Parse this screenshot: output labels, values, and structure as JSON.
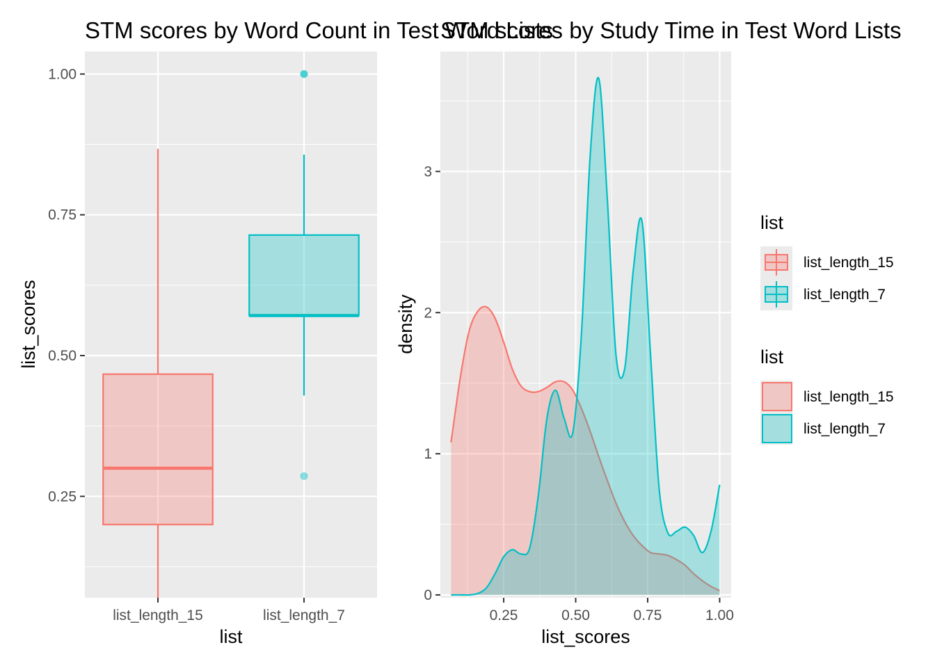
{
  "chart_data": [
    {
      "type": "boxplot",
      "title": "STM scores by Word Count in Test Word Lists",
      "xlabel": "list",
      "ylabel": "list_scores",
      "ylim": [
        0.07,
        1.04
      ],
      "y_ticks": [
        {
          "value": 0.25,
          "label": "0.25"
        },
        {
          "value": 0.5,
          "label": "0.50"
        },
        {
          "value": 0.75,
          "label": "0.75"
        },
        {
          "value": 1.0,
          "label": "1.00"
        }
      ],
      "categories": [
        "list_length_15",
        "list_length_7"
      ],
      "boxes": [
        {
          "category": "list_length_15",
          "whisker_low": 0.067,
          "q1": 0.2,
          "median": 0.3,
          "q3": 0.467,
          "whisker_high": 0.867,
          "outliers": [],
          "color": "#F8766D"
        },
        {
          "category": "list_length_7",
          "whisker_low": 0.429,
          "q1": 0.571,
          "median": 0.571,
          "q3": 0.714,
          "whisker_high": 0.857,
          "outliers": [
            1.0,
            0.286
          ],
          "color": "#00BFC4"
        }
      ],
      "grid": true
    },
    {
      "type": "area",
      "title": "STM scores by Study Time in Test Word Lists",
      "xlabel": "list_scores",
      "ylabel": "density",
      "xlim": [
        0.03,
        1.04
      ],
      "ylim": [
        -0.02,
        3.85
      ],
      "x_ticks": [
        {
          "value": 0.25,
          "label": "0.25"
        },
        {
          "value": 0.5,
          "label": "0.50"
        },
        {
          "value": 0.75,
          "label": "0.75"
        },
        {
          "value": 1.0,
          "label": "1.00"
        }
      ],
      "y_ticks": [
        {
          "value": 0,
          "label": "0"
        },
        {
          "value": 1,
          "label": "1"
        },
        {
          "value": 2,
          "label": "2"
        },
        {
          "value": 3,
          "label": "3"
        }
      ],
      "grid": true,
      "series": [
        {
          "name": "list_length_15",
          "color": "#F8766D",
          "x": [
            0.067,
            0.1,
            0.13,
            0.16,
            0.19,
            0.22,
            0.25,
            0.28,
            0.31,
            0.34,
            0.37,
            0.4,
            0.43,
            0.46,
            0.49,
            0.52,
            0.55,
            0.58,
            0.61,
            0.64,
            0.67,
            0.7,
            0.73,
            0.76,
            0.79,
            0.82,
            0.85,
            0.88,
            0.91,
            0.94,
            0.97,
            1.0
          ],
          "y": [
            1.08,
            1.55,
            1.87,
            2.01,
            2.04,
            1.96,
            1.79,
            1.6,
            1.48,
            1.44,
            1.44,
            1.47,
            1.51,
            1.51,
            1.45,
            1.32,
            1.16,
            0.98,
            0.81,
            0.65,
            0.52,
            0.42,
            0.35,
            0.3,
            0.29,
            0.28,
            0.25,
            0.21,
            0.15,
            0.1,
            0.06,
            0.03
          ]
        },
        {
          "name": "list_length_7",
          "color": "#00BFC4",
          "x": [
            0.067,
            0.1,
            0.13,
            0.16,
            0.19,
            0.22,
            0.25,
            0.28,
            0.31,
            0.34,
            0.37,
            0.4,
            0.43,
            0.46,
            0.49,
            0.52,
            0.55,
            0.58,
            0.61,
            0.64,
            0.67,
            0.7,
            0.73,
            0.76,
            0.79,
            0.82,
            0.85,
            0.88,
            0.91,
            0.94,
            0.97,
            1.0
          ],
          "y": [
            0.0,
            0.0,
            0.0,
            0.01,
            0.05,
            0.15,
            0.27,
            0.32,
            0.29,
            0.33,
            0.7,
            1.25,
            1.45,
            1.25,
            1.15,
            1.85,
            3.1,
            3.66,
            2.8,
            1.7,
            1.6,
            2.3,
            2.65,
            1.7,
            0.75,
            0.44,
            0.45,
            0.48,
            0.42,
            0.3,
            0.45,
            0.78
          ]
        }
      ]
    }
  ],
  "legend": {
    "title": "list",
    "items": [
      {
        "label": "list_length_15",
        "color": "#F8766D"
      },
      {
        "label": "list_length_7",
        "color": "#00BFC4"
      }
    ]
  }
}
